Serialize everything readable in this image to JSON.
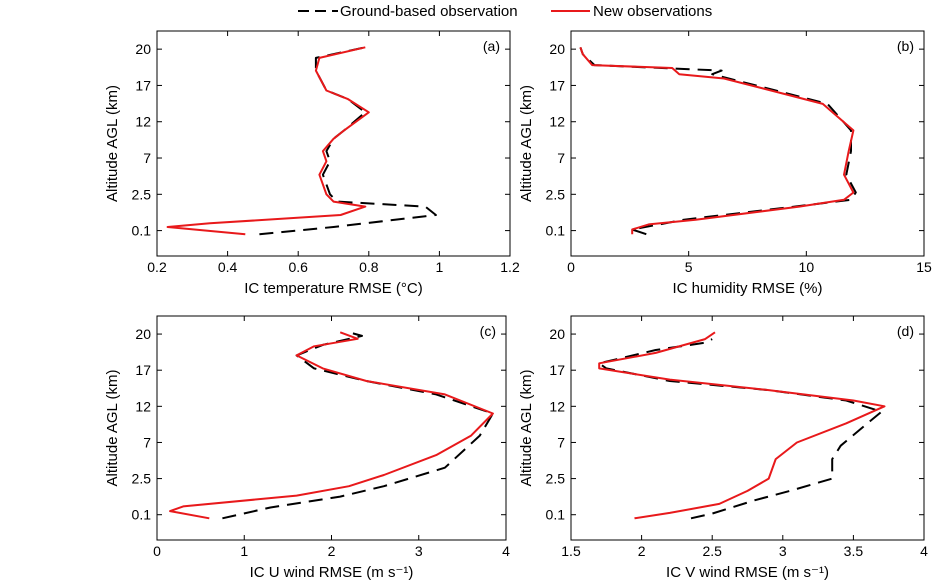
{
  "legend": {
    "entries": [
      {
        "label": "Ground-based observation",
        "color": "#000000",
        "style": "dashed"
      },
      {
        "label": "New observations",
        "color": "#e8191b",
        "style": "solid"
      }
    ]
  },
  "chart_data": [
    {
      "type": "line",
      "panel_label": "(a)",
      "xlabel": "IC temperature RMSE (°C)",
      "ylabel": "Altitude AGL (km)",
      "xlim": [
        0.2,
        1.2
      ],
      "xticks": [
        "0.2",
        "0.4",
        "0.6",
        "0.8",
        "1",
        "1.2"
      ],
      "yticks": [
        "0.1",
        "2.5",
        "7",
        "12",
        "17",
        "20"
      ],
      "y_scale": "nonuniform (tick-label spacing)",
      "series": [
        {
          "name": "Ground-based observation",
          "color": "#000000",
          "style": "dashed",
          "points": [
            [
              0.49,
              -0.1
            ],
            [
              0.7,
              0.1
            ],
            [
              0.99,
              0.43
            ],
            [
              0.96,
              0.66
            ],
            [
              0.71,
              0.8
            ],
            [
              0.69,
              1.0
            ],
            [
              0.67,
              1.54
            ],
            [
              0.69,
              1.91
            ],
            [
              0.68,
              2.19
            ],
            [
              0.7,
              2.53
            ],
            [
              0.73,
              2.76
            ],
            [
              0.79,
              3.26
            ],
            [
              0.74,
              3.63
            ],
            [
              0.68,
              3.86
            ],
            [
              0.65,
              4.41
            ],
            [
              0.65,
              4.76
            ],
            [
              0.79,
              5.05
            ]
          ]
        },
        {
          "name": "New observations",
          "color": "#e8191b",
          "style": "solid",
          "points": [
            [
              0.45,
              -0.1
            ],
            [
              0.23,
              0.1
            ],
            [
              0.35,
              0.2
            ],
            [
              0.72,
              0.43
            ],
            [
              0.79,
              0.66
            ],
            [
              0.7,
              0.8
            ],
            [
              0.68,
              1.0
            ],
            [
              0.66,
              1.54
            ],
            [
              0.68,
              1.91
            ],
            [
              0.67,
              2.19
            ],
            [
              0.7,
              2.53
            ],
            [
              0.73,
              2.76
            ],
            [
              0.8,
              3.26
            ],
            [
              0.74,
              3.63
            ],
            [
              0.68,
              3.86
            ],
            [
              0.65,
              4.41
            ],
            [
              0.66,
              4.76
            ],
            [
              0.79,
              5.05
            ]
          ]
        }
      ]
    },
    {
      "type": "line",
      "panel_label": "(b)",
      "xlabel": "IC humidity RMSE (%)",
      "ylabel": "Altitude AGL (km)",
      "xlim": [
        0,
        15
      ],
      "xticks": [
        "0",
        "5",
        "10",
        "15"
      ],
      "yticks": [
        "0.1",
        "2.5",
        "7",
        "12",
        "17",
        "20"
      ],
      "y_scale": "nonuniform (tick-label spacing)",
      "series": [
        {
          "name": "Ground-based observation",
          "color": "#000000",
          "style": "dashed",
          "points": [
            [
              3.2,
              -0.1
            ],
            [
              2.6,
              0.03
            ],
            [
              4.8,
              0.3
            ],
            [
              9.5,
              0.66
            ],
            [
              11.9,
              0.85
            ],
            [
              12.1,
              1.05
            ],
            [
              11.7,
              1.54
            ],
            [
              11.9,
              2.19
            ],
            [
              11.9,
              2.76
            ],
            [
              10.9,
              3.49
            ],
            [
              8.7,
              3.86
            ],
            [
              6.7,
              4.19
            ],
            [
              6.0,
              4.31
            ],
            [
              6.4,
              4.41
            ],
            [
              1.0,
              4.56
            ],
            [
              0.5,
              4.86
            ],
            [
              0.4,
              5.05
            ]
          ]
        },
        {
          "name": "New observations",
          "color": "#e8191b",
          "style": "solid",
          "points": [
            [
              2.6,
              -0.1
            ],
            [
              2.6,
              0.03
            ],
            [
              3.3,
              0.17
            ],
            [
              5.3,
              0.3
            ],
            [
              9.7,
              0.66
            ],
            [
              11.6,
              0.85
            ],
            [
              12.0,
              1.05
            ],
            [
              11.6,
              1.54
            ],
            [
              11.8,
              2.19
            ],
            [
              12.0,
              2.76
            ],
            [
              10.7,
              3.49
            ],
            [
              8.5,
              3.86
            ],
            [
              6.5,
              4.19
            ],
            [
              4.6,
              4.31
            ],
            [
              4.3,
              4.48
            ],
            [
              0.9,
              4.56
            ],
            [
              0.5,
              4.86
            ],
            [
              0.4,
              5.05
            ]
          ]
        }
      ]
    },
    {
      "type": "line",
      "panel_label": "(c)",
      "xlabel": "IC U wind RMSE (m s⁻¹)",
      "ylabel": "Altitude AGL (km)",
      "xlim": [
        0,
        4
      ],
      "xticks": [
        "0",
        "1",
        "2",
        "3",
        "4"
      ],
      "yticks": [
        "0.1",
        "2.5",
        "7",
        "12",
        "17",
        "20"
      ],
      "y_scale": "nonuniform (tick-label spacing)",
      "series": [
        {
          "name": "Ground-based observation",
          "color": "#000000",
          "style": "dashed",
          "points": [
            [
              0.75,
              -0.1
            ],
            [
              1.3,
              0.2
            ],
            [
              2.1,
              0.5
            ],
            [
              2.6,
              0.79
            ],
            [
              3.3,
              1.3
            ],
            [
              3.7,
              2.19
            ],
            [
              3.85,
              2.8
            ],
            [
              3.2,
              3.33
            ],
            [
              2.4,
              3.7
            ],
            [
              1.8,
              4.05
            ],
            [
              1.6,
              4.41
            ],
            [
              1.9,
              4.7
            ],
            [
              2.35,
              4.95
            ],
            [
              2.2,
              5.05
            ]
          ]
        },
        {
          "name": "New observations",
          "color": "#e8191b",
          "style": "solid",
          "points": [
            [
              0.6,
              -0.1
            ],
            [
              0.15,
              0.1
            ],
            [
              0.3,
              0.23
            ],
            [
              1.6,
              0.53
            ],
            [
              2.2,
              0.79
            ],
            [
              2.6,
              1.1
            ],
            [
              3.2,
              1.65
            ],
            [
              3.6,
              2.19
            ],
            [
              3.85,
              2.8
            ],
            [
              3.3,
              3.33
            ],
            [
              2.4,
              3.7
            ],
            [
              1.9,
              4.05
            ],
            [
              1.6,
              4.41
            ],
            [
              1.8,
              4.66
            ],
            [
              2.3,
              4.87
            ],
            [
              2.1,
              5.05
            ]
          ]
        }
      ]
    },
    {
      "type": "line",
      "panel_label": "(d)",
      "xlabel": "IC V wind RMSE (m s⁻¹)",
      "ylabel": "Altitude AGL (km)",
      "xlim": [
        1.5,
        4
      ],
      "xticks": [
        "1.5",
        "2",
        "2.5",
        "3",
        "3.5",
        "4"
      ],
      "yticks": [
        "0.1",
        "2.5",
        "7",
        "12",
        "17",
        "20"
      ],
      "y_scale": "nonuniform (tick-label spacing)",
      "series": [
        {
          "name": "Ground-based observation",
          "color": "#000000",
          "style": "dashed",
          "points": [
            [
              2.35,
              -0.1
            ],
            [
              2.5,
              0.03
            ],
            [
              2.8,
              0.4
            ],
            [
              3.05,
              0.66
            ],
            [
              3.35,
              1.0
            ],
            [
              3.35,
              1.54
            ],
            [
              3.41,
              1.91
            ],
            [
              3.6,
              2.53
            ],
            [
              3.7,
              2.85
            ],
            [
              3.45,
              3.16
            ],
            [
              2.9,
              3.45
            ],
            [
              2.2,
              3.7
            ],
            [
              1.75,
              4.05
            ],
            [
              1.7,
              4.19
            ],
            [
              2.1,
              4.56
            ],
            [
              2.45,
              4.76
            ],
            [
              2.5,
              4.86
            ]
          ]
        },
        {
          "name": "New observations",
          "color": "#e8191b",
          "style": "solid",
          "points": [
            [
              1.95,
              -0.1
            ],
            [
              2.2,
              0.05
            ],
            [
              2.55,
              0.3
            ],
            [
              2.75,
              0.66
            ],
            [
              2.9,
              1.0
            ],
            [
              2.95,
              1.54
            ],
            [
              3.1,
              2.0
            ],
            [
              3.45,
              2.53
            ],
            [
              3.72,
              3.0
            ],
            [
              3.5,
              3.16
            ],
            [
              2.9,
              3.45
            ],
            [
              2.2,
              3.74
            ],
            [
              1.7,
              4.05
            ],
            [
              1.7,
              4.19
            ],
            [
              2.1,
              4.48
            ],
            [
              2.45,
              4.86
            ],
            [
              2.52,
              5.05
            ]
          ]
        }
      ]
    }
  ]
}
